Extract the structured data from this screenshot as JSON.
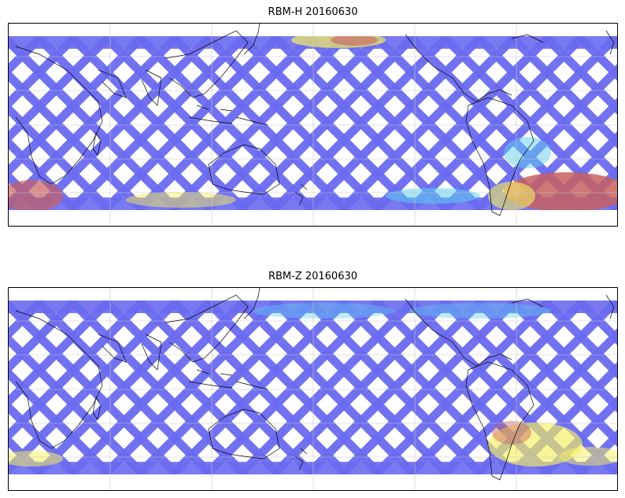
{
  "figure": {
    "panels": [
      {
        "title": "RBM-H 20160630",
        "variable": "RBM-H",
        "date": "20160630"
      },
      {
        "title": "RBM-Z 20160630",
        "variable": "RBM-Z",
        "date": "20160630"
      }
    ],
    "colormap": "jet",
    "colormap_alpha": 0.6,
    "swath_pattern": "satellite ground tracks (crossing ascending/descending swaths)",
    "coastlines": true,
    "gridlines": true,
    "colors": {
      "low": "#6a6af0",
      "mid": "#5fd0f0",
      "high": "#f5f060",
      "very_high": "#c86060",
      "coastline": "#000000",
      "grid": "#c8c8c8",
      "frame": "#000000"
    }
  }
}
